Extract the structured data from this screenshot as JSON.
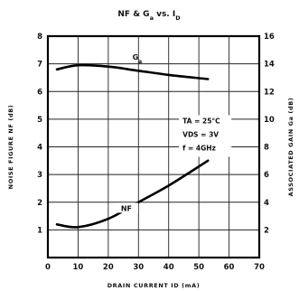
{
  "chart_data": {
    "type": "line",
    "title": "NF & Ga vs. ID",
    "title_parts": {
      "main": "NF & G",
      "sub1": "a",
      "mid": " vs. I",
      "sub2": "D"
    },
    "xlabel": "DRAIN CURRENT  ID (mA)",
    "ylabel_left": "NOISE FIGURE NF (dB)",
    "ylabel_right": "ASSOCIATED GAIN Ga (dB)",
    "xlim": [
      0,
      70
    ],
    "ylim_left": [
      0,
      8
    ],
    "ylim_right": [
      0,
      16
    ],
    "x_ticks": [
      "0",
      "10",
      "20",
      "30",
      "40",
      "50",
      "60",
      "70"
    ],
    "y_left_ticks": [
      "1",
      "2",
      "3",
      "4",
      "5",
      "6",
      "7",
      "8"
    ],
    "y_right_ticks": [
      "2",
      "4",
      "6",
      "8",
      "10",
      "12",
      "14",
      "16"
    ],
    "grid": true,
    "annotations": [
      "TA = 25°C",
      "VDS = 3V",
      "f = 4GHz"
    ],
    "series": [
      {
        "name": "Ga",
        "axis": "right",
        "x": [
          3,
          10,
          20,
          30,
          40,
          53
        ],
        "y": [
          13.6,
          13.9,
          13.8,
          13.5,
          13.2,
          12.9
        ]
      },
      {
        "name": "NF",
        "axis": "left",
        "x": [
          3,
          10,
          20,
          30,
          40,
          53
        ],
        "y": [
          1.2,
          1.1,
          1.4,
          2.0,
          2.6,
          3.5
        ]
      }
    ]
  }
}
